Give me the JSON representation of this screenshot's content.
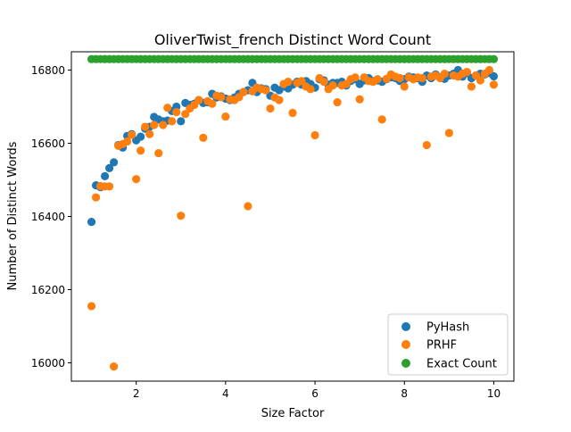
{
  "chart_data": {
    "type": "scatter",
    "title": "OliverTwist_french Distinct Word Count",
    "xlabel": "Size Factor",
    "ylabel": "Number of Distinct Words",
    "xlim": [
      0.55,
      10.45
    ],
    "ylim": [
      15950,
      16850
    ],
    "xticks": [
      2,
      4,
      6,
      8,
      10
    ],
    "yticks": [
      16000,
      16200,
      16400,
      16600,
      16800
    ],
    "grid": false,
    "legend_position": "lower right",
    "series": [
      {
        "name": "PyHash",
        "color": "#1f77b4",
        "points": [
          [
            1.0,
            16385
          ],
          [
            1.1,
            16485
          ],
          [
            1.2,
            16480
          ],
          [
            1.3,
            16510
          ],
          [
            1.4,
            16532
          ],
          [
            1.5,
            16548
          ],
          [
            1.6,
            16595
          ],
          [
            1.7,
            16588
          ],
          [
            1.8,
            16620
          ],
          [
            1.9,
            16625
          ],
          [
            2.0,
            16608
          ],
          [
            2.1,
            16618
          ],
          [
            2.2,
            16640
          ],
          [
            2.3,
            16645
          ],
          [
            2.4,
            16672
          ],
          [
            2.5,
            16665
          ],
          [
            2.6,
            16660
          ],
          [
            2.7,
            16662
          ],
          [
            2.8,
            16688
          ],
          [
            2.9,
            16700
          ],
          [
            3.0,
            16660
          ],
          [
            3.1,
            16710
          ],
          [
            3.2,
            16705
          ],
          [
            3.3,
            16708
          ],
          [
            3.4,
            16718
          ],
          [
            3.5,
            16710
          ],
          [
            3.6,
            16712
          ],
          [
            3.7,
            16735
          ],
          [
            3.8,
            16725
          ],
          [
            3.9,
            16728
          ],
          [
            4.0,
            16722
          ],
          [
            4.1,
            16718
          ],
          [
            4.2,
            16725
          ],
          [
            4.3,
            16735
          ],
          [
            4.4,
            16740
          ],
          [
            4.5,
            16745
          ],
          [
            4.6,
            16765
          ],
          [
            4.7,
            16740
          ],
          [
            4.8,
            16750
          ],
          [
            4.9,
            16748
          ],
          [
            5.0,
            16730
          ],
          [
            5.1,
            16752
          ],
          [
            5.2,
            16745
          ],
          [
            5.3,
            16755
          ],
          [
            5.4,
            16750
          ],
          [
            5.5,
            16760
          ],
          [
            5.6,
            16768
          ],
          [
            5.7,
            16760
          ],
          [
            5.8,
            16770
          ],
          [
            5.9,
            16762
          ],
          [
            6.0,
            16752
          ],
          [
            6.1,
            16775
          ],
          [
            6.2,
            16772
          ],
          [
            6.3,
            16760
          ],
          [
            6.4,
            16765
          ],
          [
            6.5,
            16765
          ],
          [
            6.6,
            16768
          ],
          [
            6.7,
            16758
          ],
          [
            6.8,
            16770
          ],
          [
            6.9,
            16775
          ],
          [
            7.0,
            16762
          ],
          [
            7.1,
            16772
          ],
          [
            7.2,
            16778
          ],
          [
            7.3,
            16770
          ],
          [
            7.4,
            16772
          ],
          [
            7.5,
            16768
          ],
          [
            7.6,
            16775
          ],
          [
            7.7,
            16780
          ],
          [
            7.8,
            16778
          ],
          [
            7.9,
            16770
          ],
          [
            8.0,
            16775
          ],
          [
            8.1,
            16782
          ],
          [
            8.2,
            16780
          ],
          [
            8.3,
            16778
          ],
          [
            8.4,
            16768
          ],
          [
            8.5,
            16785
          ],
          [
            8.6,
            16778
          ],
          [
            8.7,
            16788
          ],
          [
            8.8,
            16780
          ],
          [
            8.9,
            16776
          ],
          [
            9.0,
            16785
          ],
          [
            9.1,
            16790
          ],
          [
            9.2,
            16800
          ],
          [
            9.3,
            16782
          ],
          [
            9.4,
            16792
          ],
          [
            9.5,
            16778
          ],
          [
            9.6,
            16785
          ],
          [
            9.7,
            16790
          ],
          [
            9.8,
            16788
          ],
          [
            9.9,
            16792
          ],
          [
            10.0,
            16783
          ]
        ]
      },
      {
        "name": "PRHF",
        "color": "#ff7f0e",
        "points": [
          [
            1.0,
            16155
          ],
          [
            1.1,
            16452
          ],
          [
            1.2,
            16483
          ],
          [
            1.3,
            16482
          ],
          [
            1.4,
            16482
          ],
          [
            1.5,
            15990
          ],
          [
            1.6,
            16593
          ],
          [
            1.7,
            16598
          ],
          [
            1.8,
            16605
          ],
          [
            1.9,
            16623
          ],
          [
            2.0,
            16502
          ],
          [
            2.1,
            16580
          ],
          [
            2.2,
            16645
          ],
          [
            2.3,
            16625
          ],
          [
            2.4,
            16650
          ],
          [
            2.5,
            16573
          ],
          [
            2.6,
            16650
          ],
          [
            2.7,
            16697
          ],
          [
            2.8,
            16660
          ],
          [
            2.9,
            16685
          ],
          [
            3.0,
            16402
          ],
          [
            3.1,
            16680
          ],
          [
            3.2,
            16695
          ],
          [
            3.3,
            16705
          ],
          [
            3.4,
            16718
          ],
          [
            3.5,
            16615
          ],
          [
            3.6,
            16715
          ],
          [
            3.7,
            16708
          ],
          [
            3.8,
            16730
          ],
          [
            3.9,
            16726
          ],
          [
            4.0,
            16673
          ],
          [
            4.1,
            16720
          ],
          [
            4.2,
            16718
          ],
          [
            4.3,
            16726
          ],
          [
            4.4,
            16740
          ],
          [
            4.5,
            16428
          ],
          [
            4.6,
            16742
          ],
          [
            4.7,
            16752
          ],
          [
            4.8,
            16748
          ],
          [
            4.9,
            16745
          ],
          [
            5.0,
            16695
          ],
          [
            5.1,
            16725
          ],
          [
            5.2,
            16718
          ],
          [
            5.3,
            16762
          ],
          [
            5.4,
            16768
          ],
          [
            5.5,
            16683
          ],
          [
            5.6,
            16765
          ],
          [
            5.7,
            16770
          ],
          [
            5.8,
            16755
          ],
          [
            5.9,
            16748
          ],
          [
            6.0,
            16622
          ],
          [
            6.1,
            16778
          ],
          [
            6.2,
            16768
          ],
          [
            6.3,
            16748
          ],
          [
            6.4,
            16758
          ],
          [
            6.5,
            16712
          ],
          [
            6.6,
            16758
          ],
          [
            6.7,
            16762
          ],
          [
            6.8,
            16775
          ],
          [
            6.9,
            16780
          ],
          [
            7.0,
            16720
          ],
          [
            7.1,
            16780
          ],
          [
            7.2,
            16770
          ],
          [
            7.3,
            16768
          ],
          [
            7.4,
            16775
          ],
          [
            7.5,
            16665
          ],
          [
            7.6,
            16776
          ],
          [
            7.7,
            16788
          ],
          [
            7.8,
            16782
          ],
          [
            7.9,
            16778
          ],
          [
            8.0,
            16755
          ],
          [
            8.1,
            16780
          ],
          [
            8.2,
            16775
          ],
          [
            8.3,
            16780
          ],
          [
            8.4,
            16778
          ],
          [
            8.5,
            16595
          ],
          [
            8.6,
            16782
          ],
          [
            8.7,
            16785
          ],
          [
            8.8,
            16778
          ],
          [
            8.9,
            16790
          ],
          [
            9.0,
            16628
          ],
          [
            9.1,
            16785
          ],
          [
            9.2,
            16782
          ],
          [
            9.3,
            16790
          ],
          [
            9.4,
            16795
          ],
          [
            9.5,
            16755
          ],
          [
            9.6,
            16785
          ],
          [
            9.7,
            16772
          ],
          [
            9.8,
            16790
          ],
          [
            9.9,
            16800
          ],
          [
            10.0,
            16760
          ]
        ]
      },
      {
        "name": "Exact Count",
        "color": "#2ca02c",
        "x_start": 1.0,
        "x_end": 10.0,
        "x_step": 0.1,
        "constant_y": 16830
      }
    ]
  }
}
